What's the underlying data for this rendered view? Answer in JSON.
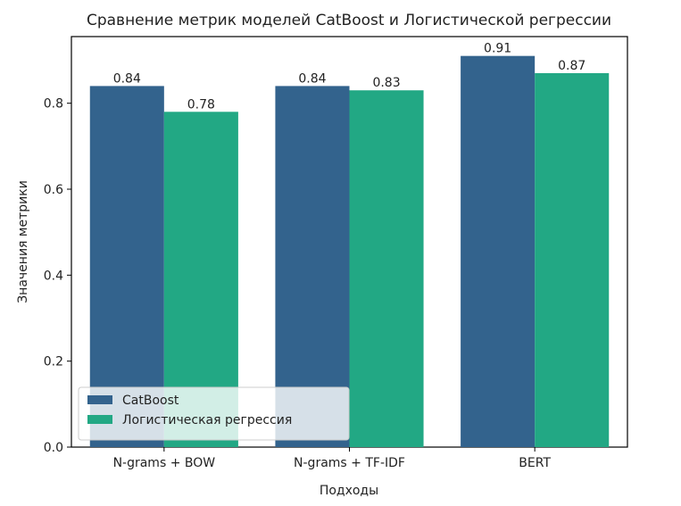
{
  "chart_data": {
    "type": "bar",
    "title": "Сравнение метрик моделей CatBoost и Логистической регрессии",
    "xlabel": "Подходы",
    "ylabel": "Значения метрики",
    "categories": [
      "N-grams + BOW",
      "N-grams + TF-IDF",
      "BERT"
    ],
    "series": [
      {
        "name": "CatBoost",
        "values": [
          0.84,
          0.84,
          0.91
        ],
        "labels": [
          "0.84",
          "0.84",
          "0.91"
        ],
        "color": "#33638d"
      },
      {
        "name": "Логистическая регрессия",
        "values": [
          0.78,
          0.83,
          0.87
        ],
        "labels": [
          "0.78",
          "0.83",
          "0.87"
        ],
        "color": "#22a884"
      }
    ],
    "ylim": [
      0,
      0.955
    ],
    "yticks": [
      0.0,
      0.2,
      0.4,
      0.6,
      0.8
    ],
    "ytick_labels": [
      "0.0",
      "0.2",
      "0.4",
      "0.6",
      "0.8"
    ],
    "legend_placement": "lower-left",
    "grid": false
  }
}
